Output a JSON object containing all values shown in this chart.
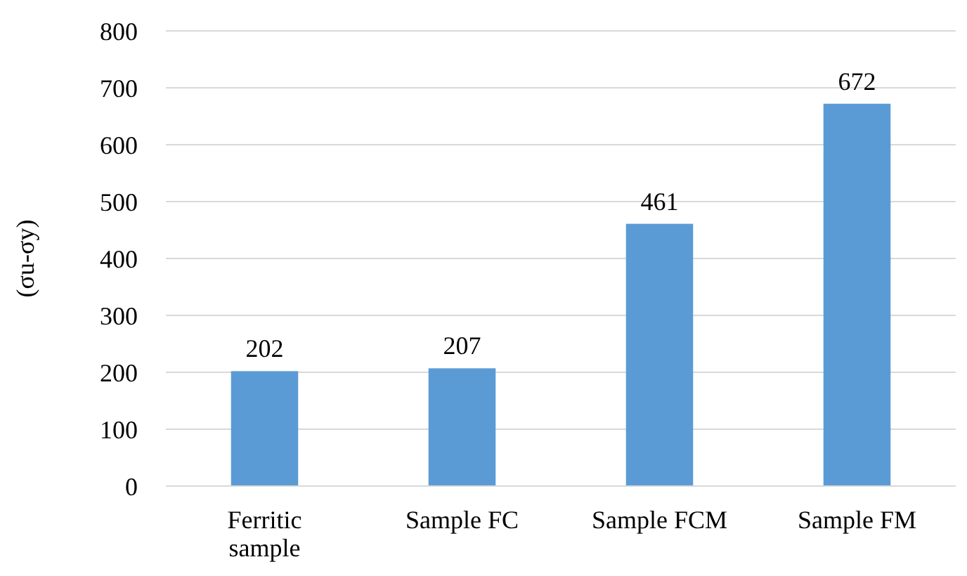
{
  "chart_data": {
    "type": "bar",
    "ylabel": "(σu-σy)",
    "categories": [
      "Ferritic sample",
      "Sample FC",
      "Sample FCM",
      "Sample FM"
    ],
    "values": [
      202,
      207,
      461,
      672
    ],
    "color": "#5b9bd5",
    "ylim": [
      0,
      800
    ],
    "yticks": [
      0,
      100,
      200,
      300,
      400,
      500,
      600,
      700,
      800
    ],
    "grid": "y",
    "data_labels": true
  }
}
